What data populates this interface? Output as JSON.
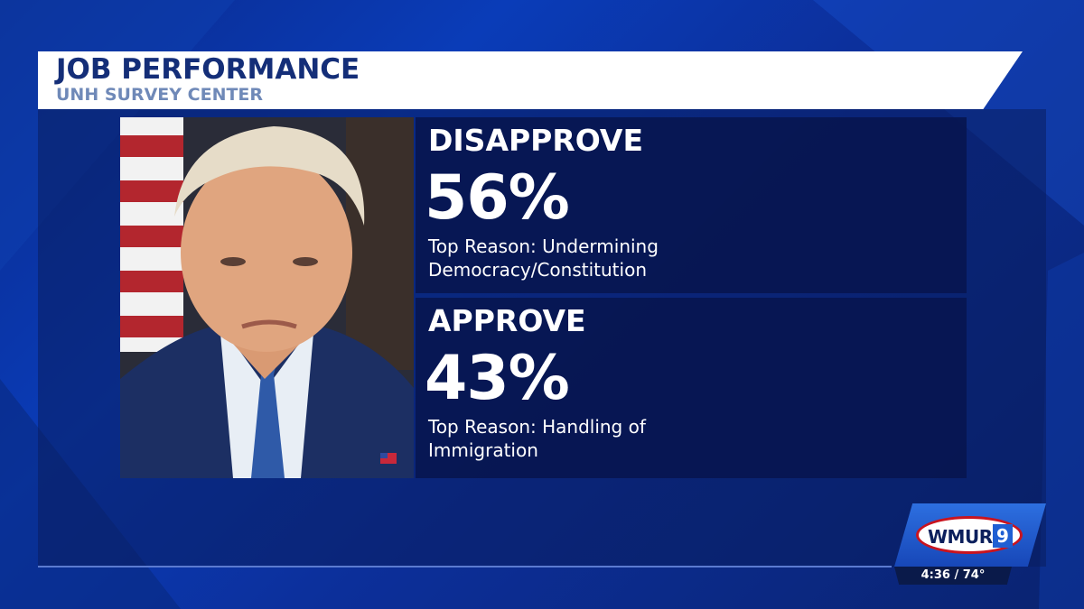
{
  "header": {
    "title": "JOB PERFORMANCE",
    "subtitle": "UNH SURVEY CENTER"
  },
  "stats": [
    {
      "label": "DISAPPROVE",
      "value": "56%",
      "reason_line1": "Top Reason: Undermining",
      "reason_line2": "Democracy/Constitution"
    },
    {
      "label": "APPROVE",
      "value": "43%",
      "reason_line1": "Top Reason: Handling of",
      "reason_line2": "Immigration"
    }
  ],
  "station": {
    "logo": "WMUR",
    "logo_number": "9",
    "time_weather": "4:36 / 74°"
  },
  "colors": {
    "header_title": "#142e78",
    "header_subtitle": "#6f89b8",
    "panel": "#08164f",
    "background": "#0a3cb8"
  },
  "icons": {
    "photo": "portrait-photo",
    "flag": "us-flag-pin-icon"
  }
}
